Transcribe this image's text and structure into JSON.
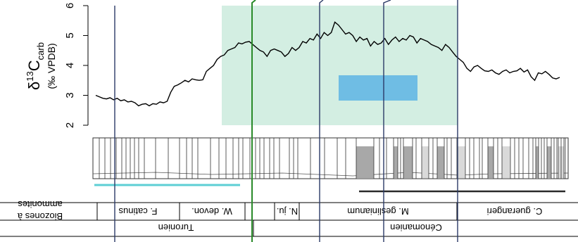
{
  "chart_data": {
    "type": "line",
    "orientation": "rotated-180",
    "ylabel": {
      "symbol": "δ",
      "sup": "13",
      "main": "C",
      "sub": "carb",
      "unit": "(‰ VPDB)"
    },
    "yticks": [
      "2",
      "3",
      "4",
      "5",
      "6"
    ],
    "ylim": [
      2,
      6
    ],
    "series": [
      {
        "y": [
          3.6,
          3.55,
          3.58,
          3.7,
          3.8,
          3.72,
          3.75,
          3.5,
          3.62,
          3.85,
          3.78,
          3.9,
          3.82,
          3.8,
          3.75,
          3.85,
          3.8,
          3.7,
          3.75,
          3.85,
          3.8,
          3.82,
          3.9,
          4.0,
          3.95,
          3.8,
          3.9,
          4.1,
          4.2,
          4.3,
          4.45,
          4.6,
          4.7,
          4.5,
          4.6,
          4.65,
          4.7,
          4.8,
          4.85,
          4.9,
          4.75,
          4.95,
          5.0,
          4.85,
          4.9,
          4.8,
          4.95,
          4.85,
          4.7,
          4.9,
          4.75,
          4.7,
          4.8,
          4.65,
          4.9,
          4.85,
          4.95,
          4.8,
          5.0,
          5.1,
          5.05,
          5.2,
          5.35,
          5.45,
          5.1,
          5.0,
          5.1,
          4.9,
          5.05,
          4.85,
          4.9,
          4.75,
          4.8,
          4.6,
          4.5,
          4.6,
          4.4,
          4.3,
          4.45,
          4.5,
          4.55,
          4.5,
          4.3,
          4.45,
          4.5,
          4.6,
          4.7,
          4.8,
          4.78,
          4.72,
          4.75,
          4.6,
          4.55,
          4.5,
          4.35,
          4.3,
          4.2,
          4.0,
          3.9,
          3.8,
          3.52,
          3.5,
          3.52,
          3.55,
          3.45,
          3.5,
          3.42,
          3.35,
          3.3,
          3.1,
          2.8,
          2.75,
          2.78,
          2.7,
          2.72,
          2.65,
          2.72,
          2.7,
          2.65,
          2.75,
          2.8,
          2.78,
          2.85,
          2.82,
          2.9,
          2.85,
          2.92,
          2.88,
          2.9,
          2.95,
          3.0
        ]
      }
    ],
    "colors": {
      "stable_band": "#d3eee2",
      "isotope_band": "#6fbde4",
      "green_line": "#2a8a2a",
      "navy_line": "#2b3a66",
      "dark_bar": "#2a2a2a",
      "cyan_bar": "#5dcfd4",
      "limestone": "#ffffff",
      "marl": "#a8a8a8",
      "marl_light": "#d9d9d9"
    },
    "ammonite_zones": [
      "C. guerangeri",
      "M. geslinianum",
      "N. ju.",
      "W. devon.",
      "F. catinus"
    ],
    "stages": [
      "Cénomanien",
      "Turonien"
    ],
    "row_labels": {
      "biozones": "Biozones à",
      "ammonites": "ammonites"
    }
  }
}
